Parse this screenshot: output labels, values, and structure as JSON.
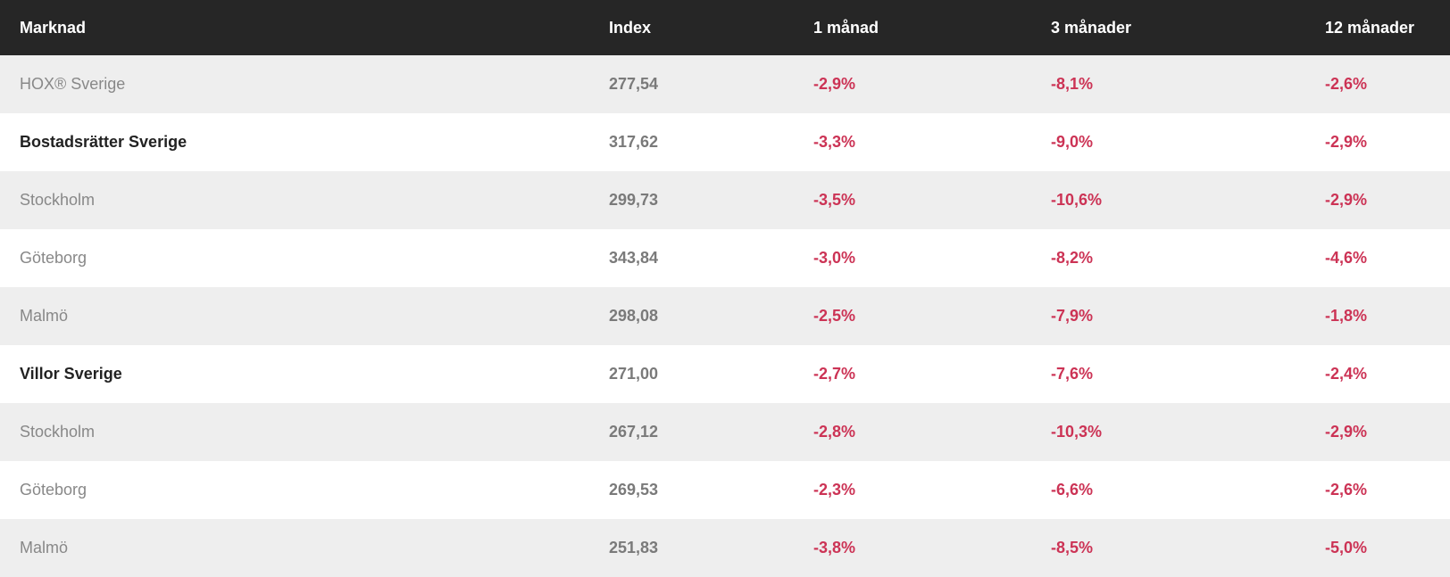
{
  "header": {
    "market": "Marknad",
    "index": "Index",
    "m1": "1 månad",
    "m3": "3 månader",
    "m12": "12 månader"
  },
  "rows": [
    {
      "market": "HOX® Sverige",
      "index": "277,54",
      "m1": "-2,9%",
      "m3": "-8,1%",
      "m12": "-2,6%",
      "bold": false
    },
    {
      "market": "Bostadsrätter Sverige",
      "index": "317,62",
      "m1": "-3,3%",
      "m3": "-9,0%",
      "m12": "-2,9%",
      "bold": true
    },
    {
      "market": "Stockholm",
      "index": "299,73",
      "m1": "-3,5%",
      "m3": "-10,6%",
      "m12": "-2,9%",
      "bold": false
    },
    {
      "market": "Göteborg",
      "index": "343,84",
      "m1": "-3,0%",
      "m3": "-8,2%",
      "m12": "-4,6%",
      "bold": false
    },
    {
      "market": "Malmö",
      "index": "298,08",
      "m1": "-2,5%",
      "m3": "-7,9%",
      "m12": "-1,8%",
      "bold": false
    },
    {
      "market": "Villor Sverige",
      "index": "271,00",
      "m1": "-2,7%",
      "m3": "-7,6%",
      "m12": "-2,4%",
      "bold": true
    },
    {
      "market": "Stockholm",
      "index": "267,12",
      "m1": "-2,8%",
      "m3": "-10,3%",
      "m12": "-2,9%",
      "bold": false
    },
    {
      "market": "Göteborg",
      "index": "269,53",
      "m1": "-2,3%",
      "m3": "-6,6%",
      "m12": "-2,6%",
      "bold": false
    },
    {
      "market": "Malmö",
      "index": "251,83",
      "m1": "-3,8%",
      "m3": "-8,5%",
      "m12": "-5,0%",
      "bold": false
    }
  ],
  "colors": {
    "header_bg": "#262626",
    "negative": "#cc3355",
    "row_alt": "#eeeeee"
  }
}
